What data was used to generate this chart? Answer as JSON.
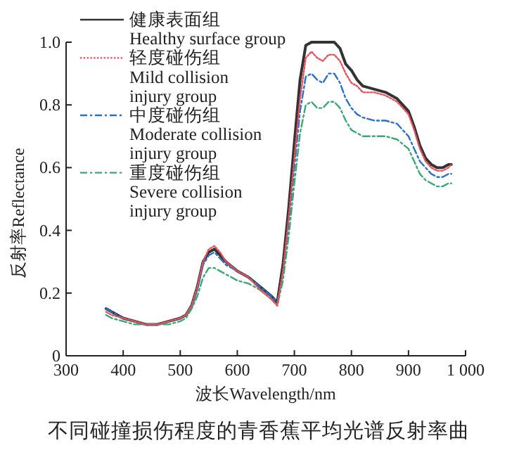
{
  "chart_data": {
    "type": "line",
    "title": "不同碰撞损伤程度的青香蕉平均光谱反射率曲",
    "xlabel": "波长Wavelength/nm",
    "ylabel": "反射率Reflectance",
    "x": [
      370,
      380,
      400,
      420,
      440,
      460,
      480,
      500,
      510,
      520,
      530,
      540,
      550,
      560,
      570,
      580,
      600,
      620,
      640,
      660,
      670,
      680,
      690,
      700,
      710,
      720,
      730,
      740,
      750,
      760,
      770,
      780,
      790,
      800,
      810,
      820,
      840,
      860,
      880,
      900,
      910,
      920,
      930,
      940,
      950,
      960,
      970,
      975
    ],
    "series": [
      {
        "name": "健康表面组\nHealthy surface group",
        "color": "#333333",
        "line_style": "solid",
        "values": [
          0.15,
          0.14,
          0.12,
          0.11,
          0.1,
          0.1,
          0.11,
          0.12,
          0.13,
          0.16,
          0.22,
          0.3,
          0.33,
          0.34,
          0.32,
          0.3,
          0.27,
          0.25,
          0.22,
          0.19,
          0.17,
          0.29,
          0.47,
          0.68,
          0.88,
          0.99,
          1.0,
          1.0,
          1.0,
          1.0,
          1.0,
          0.98,
          0.93,
          0.91,
          0.88,
          0.86,
          0.85,
          0.84,
          0.82,
          0.78,
          0.73,
          0.67,
          0.63,
          0.61,
          0.6,
          0.6,
          0.61,
          0.61
        ]
      },
      {
        "name": "轻度碰伤组\nMild collision\ninjury group",
        "color": "#e8505b",
        "line_style": "dotted",
        "values": [
          0.14,
          0.13,
          0.12,
          0.11,
          0.1,
          0.1,
          0.11,
          0.12,
          0.13,
          0.16,
          0.22,
          0.3,
          0.34,
          0.35,
          0.33,
          0.3,
          0.27,
          0.25,
          0.21,
          0.18,
          0.16,
          0.27,
          0.44,
          0.63,
          0.82,
          0.95,
          0.97,
          0.95,
          0.94,
          0.96,
          0.96,
          0.94,
          0.9,
          0.87,
          0.86,
          0.84,
          0.84,
          0.83,
          0.81,
          0.77,
          0.72,
          0.66,
          0.62,
          0.6,
          0.59,
          0.59,
          0.6,
          0.61
        ]
      },
      {
        "name": "中度碰伤组\nModerate collision\ninjury group",
        "color": "#2a6fc9",
        "line_style": "dashed",
        "values": [
          0.15,
          0.14,
          0.12,
          0.11,
          0.1,
          0.1,
          0.11,
          0.12,
          0.13,
          0.16,
          0.21,
          0.29,
          0.32,
          0.33,
          0.31,
          0.29,
          0.27,
          0.25,
          0.22,
          0.19,
          0.17,
          0.26,
          0.42,
          0.6,
          0.78,
          0.89,
          0.9,
          0.88,
          0.87,
          0.9,
          0.9,
          0.87,
          0.82,
          0.79,
          0.77,
          0.76,
          0.75,
          0.75,
          0.74,
          0.7,
          0.66,
          0.62,
          0.6,
          0.58,
          0.57,
          0.57,
          0.58,
          0.58
        ]
      },
      {
        "name": "重度碰伤组\nSevere collision\ninjury group",
        "color": "#3aa876",
        "line_style": "dashed",
        "values": [
          0.13,
          0.12,
          0.11,
          0.1,
          0.1,
          0.1,
          0.1,
          0.11,
          0.12,
          0.15,
          0.19,
          0.25,
          0.28,
          0.28,
          0.27,
          0.26,
          0.24,
          0.23,
          0.21,
          0.18,
          0.16,
          0.24,
          0.38,
          0.55,
          0.71,
          0.8,
          0.81,
          0.79,
          0.79,
          0.81,
          0.81,
          0.79,
          0.75,
          0.72,
          0.71,
          0.7,
          0.7,
          0.7,
          0.69,
          0.66,
          0.62,
          0.58,
          0.56,
          0.55,
          0.54,
          0.54,
          0.55,
          0.55
        ]
      }
    ],
    "xlim": [
      300,
      1000
    ],
    "xticks": [
      300,
      400,
      500,
      600,
      700,
      800,
      900,
      {
        "value": 1000,
        "label": "1 000"
      }
    ],
    "ylim": [
      0,
      1.0
    ],
    "yticks": [
      0,
      0.2,
      0.4,
      0.6,
      0.8,
      {
        "value": 1.0,
        "label": "1.0"
      }
    ],
    "legend": "top left"
  }
}
